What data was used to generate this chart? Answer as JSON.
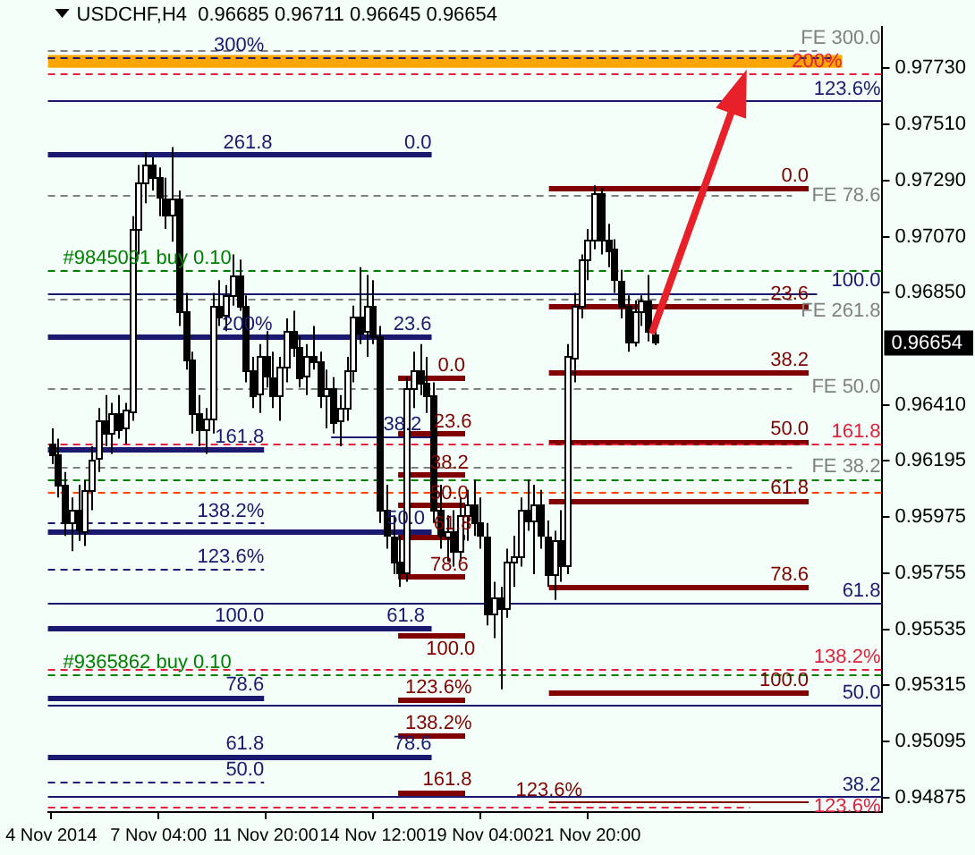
{
  "chart_data": {
    "type": "candlestick",
    "title": "USDCHF,H4  0.96685 0.96711 0.96645 0.96654",
    "categories": [
      "4 Nov 2014",
      null,
      null,
      null,
      null,
      null,
      null,
      null,
      null,
      null,
      null,
      null,
      null,
      null,
      null,
      null,
      "7 Nov 04:00",
      null,
      null,
      null,
      null,
      null,
      null,
      null,
      null,
      null,
      null,
      null,
      null,
      null,
      null,
      null,
      "11 Nov 20:00",
      null,
      null,
      null,
      null,
      null,
      null,
      null,
      null,
      null,
      null,
      null,
      null,
      null,
      null,
      null,
      "14 Nov 12:00",
      null,
      null,
      null,
      null,
      null,
      null,
      null,
      null,
      null,
      null,
      null,
      null,
      null,
      null,
      null,
      "19 Nov 04:00",
      null,
      null,
      null,
      null,
      null,
      null,
      null,
      null,
      null,
      null,
      null,
      null,
      null,
      null,
      null,
      "21 Nov 20:00",
      null,
      null,
      null,
      null,
      null,
      null,
      null,
      null,
      null,
      null,
      null,
      null,
      null,
      null,
      null,
      null,
      null,
      null,
      null,
      null,
      null,
      null,
      null,
      null,
      null,
      null,
      null,
      null,
      null,
      null,
      null,
      null,
      null,
      null,
      null,
      null,
      null,
      null,
      null,
      null,
      null,
      null,
      null,
      null
    ],
    "ohlc": [
      [
        0.9626,
        0.9632,
        0.9618,
        0.9622
      ],
      [
        0.9622,
        0.9628,
        0.9605,
        0.961
      ],
      [
        0.961,
        0.9615,
        0.959,
        0.9595
      ],
      [
        0.9595,
        0.9605,
        0.9584,
        0.96
      ],
      [
        0.96,
        0.961,
        0.9588,
        0.9592
      ],
      [
        0.9592,
        0.9612,
        0.9586,
        0.9608
      ],
      [
        0.9608,
        0.9625,
        0.96,
        0.962
      ],
      [
        0.962,
        0.964,
        0.9615,
        0.9635
      ],
      [
        0.9635,
        0.9645,
        0.9625,
        0.963
      ],
      [
        0.963,
        0.9642,
        0.9622,
        0.9638
      ],
      [
        0.9638,
        0.9645,
        0.9628,
        0.9632
      ],
      [
        0.9632,
        0.9642,
        0.9626,
        0.9639
      ],
      [
        0.9639,
        0.9715,
        0.9635,
        0.971
      ],
      [
        0.971,
        0.9735,
        0.97,
        0.9728
      ],
      [
        0.9728,
        0.974,
        0.972,
        0.9735
      ],
      [
        0.9735,
        0.9738,
        0.9725,
        0.973
      ],
      [
        0.973,
        0.9734,
        0.9715,
        0.9722
      ],
      [
        0.9722,
        0.973,
        0.971,
        0.9716
      ],
      [
        0.9716,
        0.9742,
        0.9705,
        0.9722
      ],
      [
        0.9722,
        0.9725,
        0.9672,
        0.9678
      ],
      [
        0.9678,
        0.9685,
        0.9655,
        0.9659
      ],
      [
        0.9659,
        0.9662,
        0.963,
        0.9638
      ],
      [
        0.9638,
        0.9645,
        0.9625,
        0.9632
      ],
      [
        0.9632,
        0.964,
        0.9622,
        0.9636
      ],
      [
        0.9636,
        0.9685,
        0.963,
        0.968
      ],
      [
        0.968,
        0.969,
        0.9672,
        0.9676
      ],
      [
        0.9676,
        0.9688,
        0.967,
        0.9684
      ],
      [
        0.9684,
        0.97,
        0.968,
        0.9692
      ],
      [
        0.9692,
        0.9698,
        0.9678,
        0.968
      ],
      [
        0.968,
        0.9684,
        0.965,
        0.9655
      ],
      [
        0.9655,
        0.966,
        0.964,
        0.9645
      ],
      [
        0.9645,
        0.9665,
        0.9638,
        0.966
      ],
      [
        0.966,
        0.967,
        0.9648,
        0.9652
      ],
      [
        0.9652,
        0.9662,
        0.964,
        0.9645
      ],
      [
        0.9645,
        0.966,
        0.9635,
        0.9656
      ],
      [
        0.9656,
        0.9675,
        0.965,
        0.967
      ],
      [
        0.967,
        0.9678,
        0.966,
        0.9664
      ],
      [
        0.9664,
        0.9668,
        0.9648,
        0.9652
      ],
      [
        0.9652,
        0.9665,
        0.9645,
        0.966
      ],
      [
        0.966,
        0.9672,
        0.9655,
        0.9658
      ],
      [
        0.9658,
        0.9662,
        0.964,
        0.9645
      ],
      [
        0.9645,
        0.9655,
        0.9632,
        0.9648
      ],
      [
        0.9648,
        0.9652,
        0.963,
        0.9635
      ],
      [
        0.9635,
        0.9645,
        0.9625,
        0.964
      ],
      [
        0.964,
        0.966,
        0.9635,
        0.9655
      ],
      [
        0.9655,
        0.968,
        0.965,
        0.9676
      ],
      [
        0.9676,
        0.9695,
        0.9665,
        0.967
      ],
      [
        0.967,
        0.9692,
        0.966,
        0.968
      ],
      [
        0.968,
        0.969,
        0.9665,
        0.9668
      ],
      [
        0.9668,
        0.9672,
        0.9595,
        0.96
      ],
      [
        0.96,
        0.961,
        0.9585,
        0.959
      ],
      [
        0.959,
        0.9598,
        0.9575,
        0.958
      ],
      [
        0.958,
        0.959,
        0.957,
        0.9576
      ],
      [
        0.9576,
        0.9652,
        0.9572,
        0.9648
      ],
      [
        0.9648,
        0.9662,
        0.964,
        0.9655
      ],
      [
        0.9655,
        0.9665,
        0.9645,
        0.965
      ],
      [
        0.965,
        0.966,
        0.9638,
        0.9645
      ],
      [
        0.9645,
        0.965,
        0.9595,
        0.96
      ],
      [
        0.96,
        0.961,
        0.9585,
        0.959
      ],
      [
        0.959,
        0.9598,
        0.958,
        0.9592
      ],
      [
        0.9592,
        0.96,
        0.9578,
        0.9584
      ],
      [
        0.9584,
        0.9605,
        0.958,
        0.9598
      ],
      [
        0.9598,
        0.9608,
        0.9588,
        0.9602
      ],
      [
        0.9602,
        0.9612,
        0.959,
        0.9595
      ],
      [
        0.9595,
        0.9605,
        0.9585,
        0.959
      ],
      [
        0.959,
        0.9595,
        0.9555,
        0.956
      ],
      [
        0.956,
        0.9572,
        0.955,
        0.9566
      ],
      [
        0.9566,
        0.957,
        0.953,
        0.9562
      ],
      [
        0.9562,
        0.9585,
        0.9558,
        0.958
      ],
      [
        0.958,
        0.959,
        0.957,
        0.9582
      ],
      [
        0.9582,
        0.9605,
        0.9578,
        0.96
      ],
      [
        0.96,
        0.9612,
        0.9592,
        0.9596
      ],
      [
        0.9596,
        0.961,
        0.9575,
        0.9602
      ],
      [
        0.9602,
        0.9608,
        0.9585,
        0.959
      ],
      [
        0.959,
        0.9596,
        0.957,
        0.9575
      ],
      [
        0.9575,
        0.9592,
        0.9565,
        0.9588
      ],
      [
        0.9588,
        0.96,
        0.9572,
        0.9578
      ],
      [
        0.9578,
        0.9665,
        0.9575,
        0.966
      ],
      [
        0.966,
        0.9685,
        0.965,
        0.968
      ],
      [
        0.968,
        0.97,
        0.9675,
        0.9698
      ],
      [
        0.9698,
        0.971,
        0.969,
        0.9706
      ],
      [
        0.9706,
        0.9727,
        0.9702,
        0.9724
      ],
      [
        0.9724,
        0.9726,
        0.97,
        0.9706
      ],
      [
        0.9706,
        0.9712,
        0.9695,
        0.9702
      ],
      [
        0.9702,
        0.9706,
        0.9685,
        0.969
      ],
      [
        0.969,
        0.9694,
        0.9675,
        0.968
      ],
      [
        0.968,
        0.9684,
        0.9662,
        0.9666
      ],
      [
        0.9666,
        0.9682,
        0.9664,
        0.9678
      ],
      [
        0.9678,
        0.9684,
        0.9672,
        0.9682
      ],
      [
        0.9682,
        0.9692,
        0.9666,
        0.967
      ],
      [
        0.96685,
        0.96711,
        0.96645,
        0.96654
      ],
      null,
      null,
      null,
      null,
      null,
      null,
      null,
      null,
      null,
      null,
      null,
      null,
      null,
      null,
      null,
      null,
      null,
      null,
      null,
      null,
      null,
      null,
      null,
      null,
      null,
      null,
      null,
      null,
      null,
      null,
      null,
      null,
      null,
      null
    ],
    "ylim": [
      0.9482,
      0.9789
    ],
    "yticks": [
      {
        "value": 0.94875,
        "label": "0.94875"
      },
      {
        "value": 0.95095,
        "label": "0.95095"
      },
      {
        "value": 0.95315,
        "label": "0.95315"
      },
      {
        "value": 0.95535,
        "label": "0.95535"
      },
      {
        "value": 0.95755,
        "label": "0.95755"
      },
      {
        "value": 0.95975,
        "label": "0.95975"
      },
      {
        "value": 0.96195,
        "label": "0.96195"
      },
      {
        "value": 0.9641,
        "label": "0.96410"
      },
      {
        "value": 0.9685,
        "label": "0.96850"
      },
      {
        "value": 0.9707,
        "label": "0.97070"
      },
      {
        "value": 0.9729,
        "label": "0.97290"
      },
      {
        "value": 0.9751,
        "label": "0.97510"
      },
      {
        "value": 0.9773,
        "label": "0.97730"
      }
    ],
    "grid": false,
    "legend": false,
    "bands": [
      {
        "axis": "y",
        "from": 0.9773,
        "to": 0.9778,
        "color": "#ffa500"
      }
    ],
    "ref_lines": [
      {
        "axis": "y",
        "value": 0.978,
        "color": "#808080",
        "line_style": "dashed"
      },
      {
        "axis": "y",
        "value": 0.9777,
        "color": "#191970",
        "line_style": "dashed"
      },
      {
        "axis": "y",
        "value": 0.9771,
        "color": "#e0203c",
        "line_style": "dashed"
      },
      {
        "axis": "y",
        "value": 0.976,
        "color": "#191970",
        "line_style": "solid"
      },
      {
        "axis": "y",
        "value": 0.9739,
        "color": "#191970",
        "line_style": "solid"
      },
      {
        "axis": "y",
        "value": 0.9726,
        "color": "#800000",
        "line_style": "solid"
      },
      {
        "axis": "y",
        "value": 0.9723,
        "color": "#808080",
        "line_style": "dashed"
      },
      {
        "axis": "y",
        "value": 0.9694,
        "color": "#008000",
        "line_style": "dashed"
      },
      {
        "axis": "y",
        "value": 0.9685,
        "color": "#191970",
        "line_style": "solid"
      },
      {
        "axis": "y",
        "value": 0.9683,
        "color": "#808080",
        "line_style": "dashed"
      },
      {
        "axis": "y",
        "value": 0.968,
        "color": "#800000",
        "line_style": "solid"
      },
      {
        "axis": "y",
        "value": 0.9668,
        "color": "#191970",
        "line_style": "solid"
      },
      {
        "axis": "y",
        "value": 0.9654,
        "color": "#800000",
        "line_style": "solid"
      },
      {
        "axis": "y",
        "value": 0.9652,
        "color": "#800000",
        "line_style": "solid"
      },
      {
        "axis": "y",
        "value": 0.9648,
        "color": "#808080",
        "line_style": "dashed"
      },
      {
        "axis": "y",
        "value": 0.963,
        "color": "#800000",
        "line_style": "solid"
      },
      {
        "axis": "y",
        "value": 0.9629,
        "color": "#191970",
        "line_style": "solid"
      },
      {
        "axis": "y",
        "value": 0.9627,
        "color": "#800000",
        "line_style": "solid"
      },
      {
        "axis": "y",
        "value": 0.9626,
        "color": "#e0203c",
        "line_style": "dashed"
      },
      {
        "axis": "y",
        "value": 0.9624,
        "color": "#191970",
        "line_style": "solid"
      },
      {
        "axis": "y",
        "value": 0.9617,
        "color": "#808080",
        "line_style": "dashed"
      },
      {
        "axis": "y",
        "value": 0.9614,
        "color": "#800000",
        "line_style": "solid"
      },
      {
        "axis": "y",
        "value": 0.9612,
        "color": "#008000",
        "line_style": "dashed"
      },
      {
        "axis": "y",
        "value": 0.9607,
        "color": "#ff4500",
        "line_style": "dashed"
      },
      {
        "axis": "y",
        "value": 0.9604,
        "color": "#800000",
        "line_style": "solid"
      },
      {
        "axis": "y",
        "value": 0.9602,
        "color": "#800000",
        "line_style": "solid"
      },
      {
        "axis": "y",
        "value": 0.9595,
        "color": "#191970",
        "line_style": "dashed"
      },
      {
        "axis": "y",
        "value": 0.9592,
        "color": "#191970",
        "line_style": "solid"
      },
      {
        "axis": "y",
        "value": 0.959,
        "color": "#800000",
        "line_style": "solid"
      },
      {
        "axis": "y",
        "value": 0.9577,
        "color": "#191970",
        "line_style": "dashed"
      },
      {
        "axis": "y",
        "value": 0.9574,
        "color": "#800000",
        "line_style": "solid"
      },
      {
        "axis": "y",
        "value": 0.957,
        "color": "#800000",
        "line_style": "solid"
      },
      {
        "axis": "y",
        "value": 0.9564,
        "color": "#191970",
        "line_style": "solid"
      },
      {
        "axis": "y",
        "value": 0.9554,
        "color": "#191970",
        "line_style": "solid"
      },
      {
        "axis": "y",
        "value": 0.9551,
        "color": "#800000",
        "line_style": "solid"
      },
      {
        "axis": "y",
        "value": 0.9538,
        "color": "#e0203c",
        "line_style": "dashed"
      },
      {
        "axis": "y",
        "value": 0.9536,
        "color": "#008000",
        "line_style": "dashed"
      },
      {
        "axis": "y",
        "value": 0.9529,
        "color": "#800000",
        "line_style": "solid"
      },
      {
        "axis": "y",
        "value": 0.9527,
        "color": "#191970",
        "line_style": "solid"
      },
      {
        "axis": "y",
        "value": 0.9526,
        "color": "#800000",
        "line_style": "solid"
      },
      {
        "axis": "y",
        "value": 0.9524,
        "color": "#191970",
        "line_style": "solid"
      },
      {
        "axis": "y",
        "value": 0.9512,
        "color": "#800000",
        "line_style": "solid"
      },
      {
        "axis": "y",
        "value": 0.9504,
        "color": "#191970",
        "line_style": "solid"
      },
      {
        "axis": "y",
        "value": 0.9494,
        "color": "#191970",
        "line_style": "dashed"
      },
      {
        "axis": "y",
        "value": 0.949,
        "color": "#800000",
        "line_style": "solid"
      },
      {
        "axis": "y",
        "value": 0.9488,
        "color": "#191970",
        "line_style": "solid"
      },
      {
        "axis": "y",
        "value": 0.9486,
        "color": "#800000",
        "line_style": "solid"
      },
      {
        "axis": "y",
        "value": 0.9484,
        "color": "#e0203c",
        "line_style": "dashed"
      }
    ],
    "annotations": [
      "0.96654",
      {
        "text": "FE 300.0",
        "y": 0.978
      },
      {
        "text": "300%",
        "y": 0.9777
      },
      {
        "text": "200%",
        "y": 0.9771
      },
      {
        "text": "123.6%",
        "y": 0.976
      },
      {
        "text": "261.8",
        "y": 0.9739
      },
      {
        "text": "0.0",
        "y": 0.9739
      },
      {
        "text": "0.0",
        "y": 0.9726
      },
      "FE 78.6",
      {
        "text": "#9845091 buy 0.10",
        "y": 0.9694
      },
      "100.0",
      "FE 261.8",
      {
        "text": "23.6",
        "y": 0.968
      },
      {
        "text": "200%",
        "y": 0.9668
      },
      {
        "text": "23.6",
        "y": 0.9668
      },
      {
        "text": "38.2",
        "y": 0.9654
      },
      {
        "text": "0.0",
        "y": 0.9652
      },
      "FE 50.0",
      {
        "text": "23.6",
        "y": 0.963
      },
      {
        "text": "38.2",
        "y": 0.9629
      },
      {
        "text": "50.0",
        "y": 0.9627
      },
      {
        "text": "161.8",
        "y": 0.9626
      },
      {
        "text": "161.8",
        "y": 0.9624
      },
      "FE 38.2",
      {
        "text": "38.2",
        "y": 0.9614
      },
      {
        "text": "61.8",
        "y": 0.9604
      },
      {
        "text": "50.0",
        "y": 0.9602
      },
      {
        "text": "138.2%",
        "y": 0.9595
      },
      {
        "text": "50.0",
        "y": 0.9592
      },
      {
        "text": "61.8",
        "y": 0.959
      },
      {
        "text": "123.6%",
        "y": 0.9577
      },
      {
        "text": "78.6",
        "y": 0.9574
      },
      {
        "text": "78.6",
        "y": 0.957
      },
      {
        "text": "61.8",
        "y": 0.9564
      },
      {
        "text": "100.0",
        "y": 0.9554
      },
      {
        "text": "61.8",
        "y": 0.9554
      },
      {
        "text": "100.0",
        "y": 0.9551
      },
      {
        "text": "138.2%",
        "y": 0.9538
      },
      {
        "text": "#9365862 buy 0.10",
        "y": 0.9536
      },
      {
        "text": "100.0",
        "y": 0.9529
      },
      {
        "text": "78.6",
        "y": 0.9527
      },
      {
        "text": "123.6%",
        "y": 0.9526
      },
      {
        "text": "50.0",
        "y": 0.9524
      },
      {
        "text": "138.2%",
        "y": 0.9512
      },
      {
        "text": "61.8",
        "y": 0.9504
      },
      {
        "text": "78.6",
        "y": 0.9504
      },
      {
        "text": "50.0",
        "y": 0.9494
      },
      {
        "text": "161.8",
        "y": 0.949
      },
      {
        "text": "38.2",
        "y": 0.9488
      },
      {
        "text": "123.6%",
        "y": 0.9486
      },
      "123.6%"
    ]
  }
}
